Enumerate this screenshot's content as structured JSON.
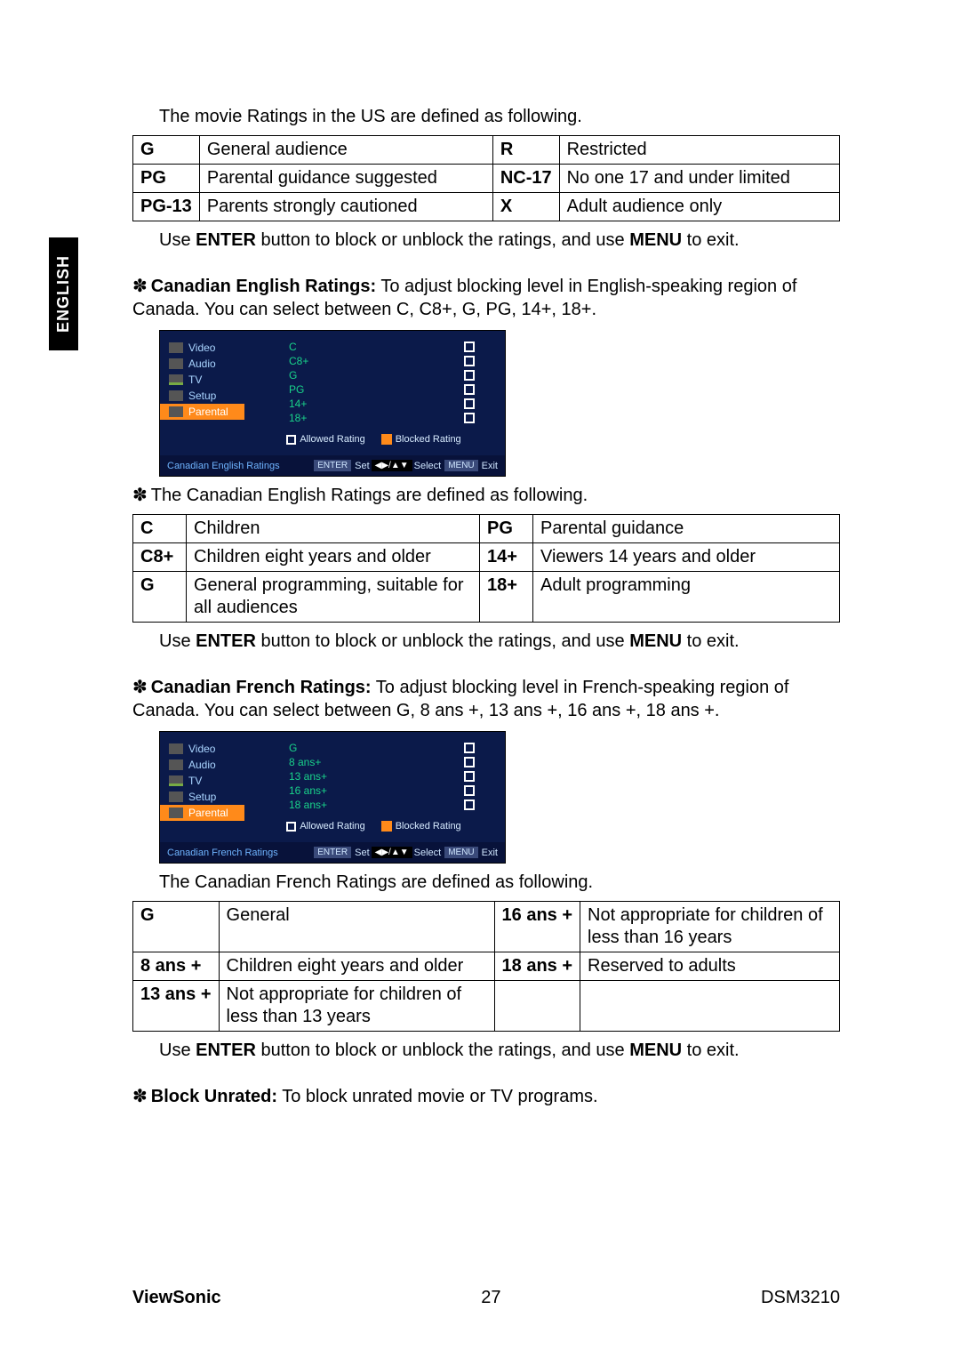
{
  "sideTab": "ENGLISH",
  "intro_us": "The movie Ratings in the US are defined as following.",
  "us_table": {
    "col_widths": [
      "65px",
      "330px",
      "65px",
      "auto"
    ],
    "rows": [
      [
        "G",
        "General audience",
        "R",
        "Restricted"
      ],
      [
        "PG",
        "Parental guidance suggested",
        "NC-17",
        "No one 17 and under limited"
      ],
      [
        "PG-13",
        "Parents strongly cautioned",
        "X",
        "Adult audience only"
      ]
    ]
  },
  "hint_pre": "Use ",
  "hint_enter": "ENTER",
  "hint_mid": " button to block or unblock the ratings, and use ",
  "hint_menu": "MENU",
  "hint_post": " to exit.",
  "ce_heading": "Canadian English Ratings:",
  "ce_text": " To adjust blocking level in English-speaking region of Canada. You can select between C, C8+, G, PG, 14+, 18+.",
  "ce_osd": {
    "title": "Canadian English Ratings",
    "side": [
      "Video",
      "Audio",
      "TV",
      "Setup",
      "Parental"
    ],
    "side_icons": [
      "ic-video",
      "ic-audio",
      "ic-tv",
      "ic-setup",
      "ic-par"
    ],
    "active_index": 4,
    "ratings": [
      "C",
      "C8+",
      "G",
      "PG",
      "14+",
      "18+"
    ],
    "legend_allowed": "Allowed Rating",
    "legend_blocked": "Blocked Rating",
    "footer_enter": "ENTER",
    "footer_set": "Set",
    "footer_select": "Select",
    "footer_menu": "MENU",
    "footer_exit": "Exit",
    "arrow_glyph": "◂▸/◂▸"
  },
  "ce_def_intro": "The Canadian English Ratings are defined as following.",
  "ce_table": {
    "col_widths": [
      "60px",
      "330px",
      "60px",
      "auto"
    ],
    "rows": [
      [
        "C",
        "Children",
        "PG",
        "Parental guidance"
      ],
      [
        "C8+",
        "Children eight years and older",
        "14+",
        "Viewers 14 years and older"
      ],
      [
        "G",
        "General programming, suitable for all audiences",
        "18+",
        "Adult programming"
      ]
    ]
  },
  "cf_heading": "Canadian French Ratings:",
  "cf_text": " To adjust blocking level in French-speaking region of Canada. You can select between G, 8 ans +, 13 ans +, 16 ans +, 18 ans +.",
  "cf_osd": {
    "title": "Canadian French Ratings",
    "side": [
      "Video",
      "Audio",
      "TV",
      "Setup",
      "Parental"
    ],
    "side_icons": [
      "ic-video",
      "ic-audio",
      "ic-tv",
      "ic-setup",
      "ic-par"
    ],
    "active_index": 4,
    "ratings": [
      "G",
      "8 ans+",
      "13 ans+",
      "16 ans+",
      "18 ans+"
    ],
    "legend_allowed": "Allowed Rating",
    "legend_blocked": "Blocked Rating",
    "footer_enter": "ENTER",
    "footer_set": "Set",
    "footer_select": "Select",
    "footer_menu": "MENU",
    "footer_exit": "Exit",
    "arrow_glyph": "◂▸/◂▸"
  },
  "cf_def_intro": "The Canadian French Ratings are defined as following.",
  "cf_table": {
    "col_widths": [
      "90px",
      "310px",
      "90px",
      "auto"
    ],
    "rows": [
      [
        "G",
        "General",
        "16 ans +",
        "Not appropriate for children of less than 16 years"
      ],
      [
        "8 ans +",
        "Children eight years and older",
        "18 ans +",
        "Reserved to adults"
      ],
      [
        "13 ans +",
        "Not appropriate for children of less than 13 years",
        "",
        ""
      ]
    ]
  },
  "block_unrated_heading": "Block Unrated:",
  "block_unrated_text": " To block unrated movie or TV programs.",
  "footer": {
    "brand": "ViewSonic",
    "page": "27",
    "model": "DSM3210"
  },
  "star_glyph": "✽"
}
